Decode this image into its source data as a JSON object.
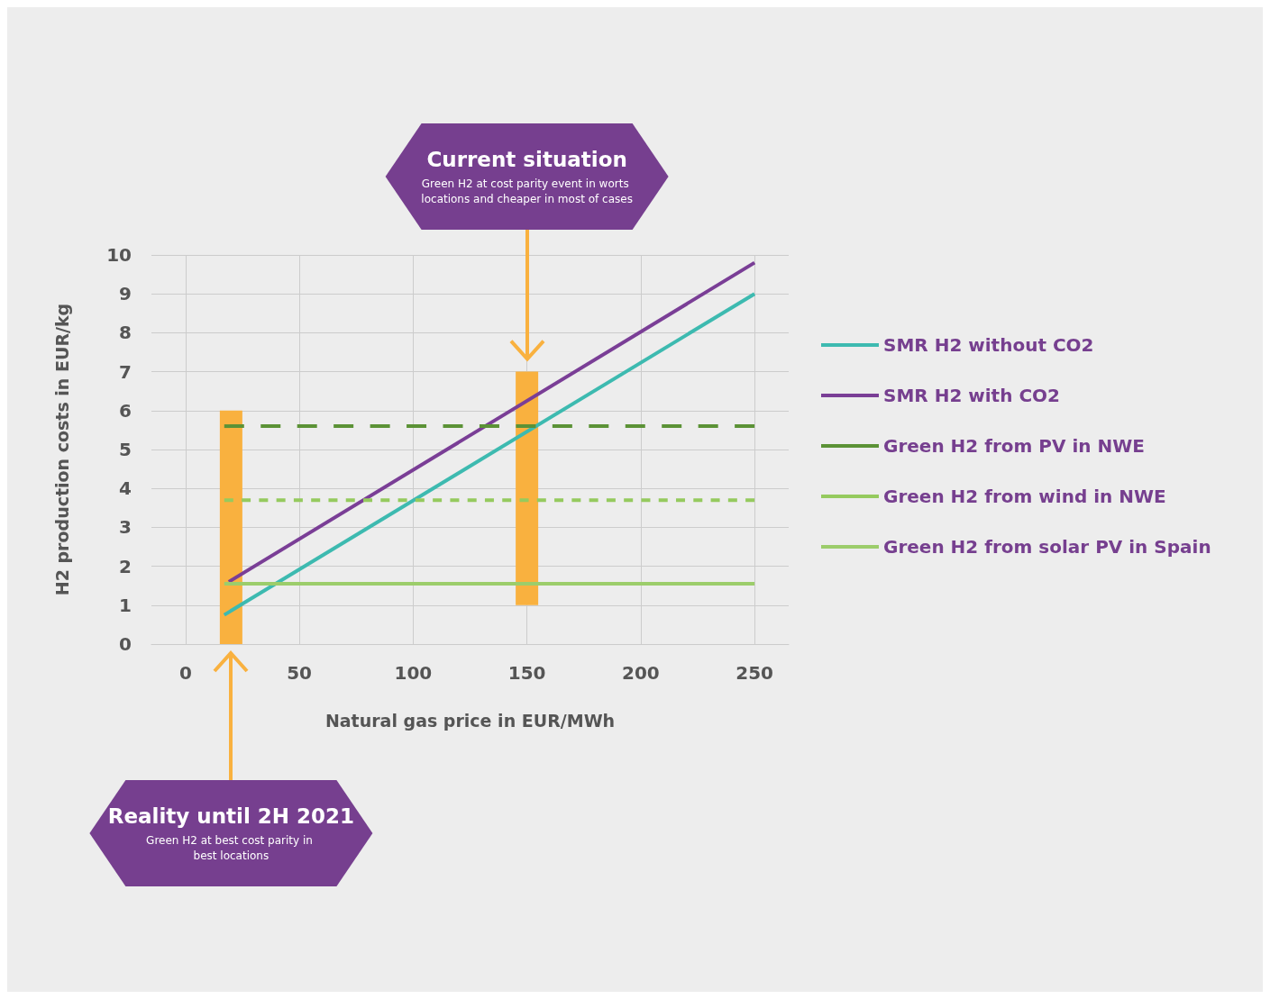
{
  "chart_data": {
    "type": "line",
    "xlabel": "Natural gas price in EUR/MWh",
    "ylabel": "H2 production costs in EUR/kg",
    "xlim": [
      -15,
      265
    ],
    "xticks": [
      0,
      50,
      100,
      150,
      200,
      250
    ],
    "ylim": [
      0,
      10
    ],
    "yticks": [
      0,
      1,
      2,
      3,
      4,
      5,
      6,
      7,
      8,
      9,
      10
    ],
    "grid": true,
    "legend": "right",
    "marker": "none",
    "annotations": [
      "Current situation",
      "Green H2 at cost parity event in worts locations and cheaper in most of cases",
      "Reality until 2H 2021",
      "Green H2 at best cost parity in best locations"
    ],
    "series": [
      {
        "type": "bar",
        "x": [
          20,
          150
        ],
        "base": [
          0,
          1
        ],
        "values": [
          6,
          6
        ],
        "color": "#f9b13f"
      },
      {
        "name": "SMR H2 without CO2",
        "color": "#3dbab0",
        "x": [
          17,
          250
        ],
        "values": [
          0.75,
          9.0
        ]
      },
      {
        "name": "SMR H2 with CO2",
        "color": "#7a3e96",
        "x": [
          19,
          250
        ],
        "values": [
          1.6,
          9.8
        ]
      },
      {
        "name": "Green H2 from PV in NWE",
        "color": "#5b9236",
        "x": [
          17,
          250
        ],
        "values": [
          5.6,
          5.6
        ],
        "line_style": "dashed"
      },
      {
        "name": "Green H2 from wind in NWE",
        "color": "#95ca5e",
        "x": [
          17,
          250
        ],
        "values": [
          3.7,
          3.7
        ],
        "line_style": "dotted"
      },
      {
        "name": "Green H2 from solar PV in Spain",
        "color": "#9ccd6b",
        "x": [
          17,
          250
        ],
        "values": [
          1.55,
          1.55
        ]
      }
    ]
  }
}
